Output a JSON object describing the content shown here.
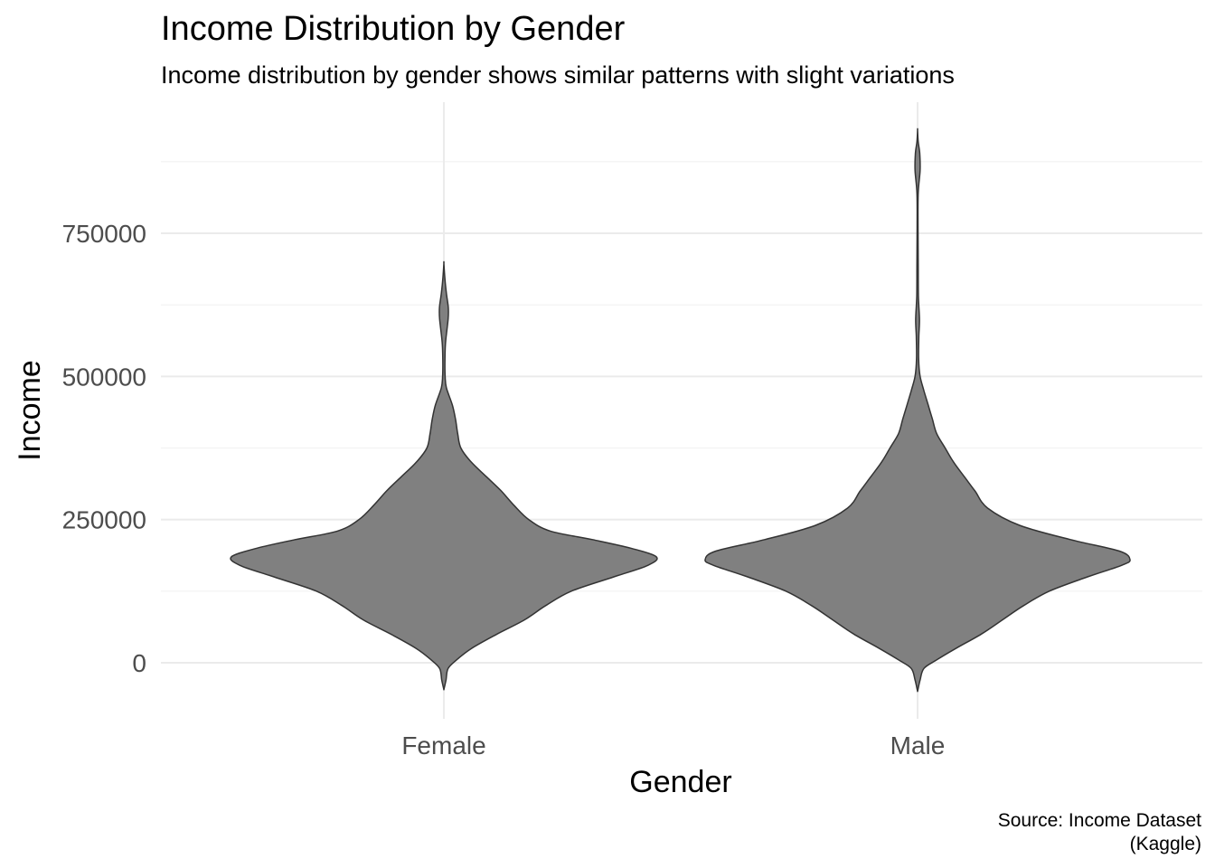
{
  "chart_data": {
    "type": "violin",
    "title": "Income Distribution by Gender",
    "subtitle": "Income distribution by gender shows similar patterns with slight variations",
    "xlabel": "Gender",
    "ylabel": "Income",
    "caption": [
      "Source: Income Dataset",
      "(Kaggle)"
    ],
    "categories": [
      "Female",
      "Male"
    ],
    "yticks": [
      0,
      250000,
      500000,
      750000
    ],
    "ylim": [
      -90000,
      980000
    ],
    "grid": true,
    "fill_color": "#808080",
    "outline_color": "#333333",
    "grid_color": "#ebebeb",
    "series": [
      {
        "category": "Female",
        "min": -47000,
        "max": 697000,
        "density_profile": [
          [
            -47000,
            0.0
          ],
          [
            -30000,
            0.01
          ],
          [
            -10000,
            0.02
          ],
          [
            5000,
            0.06
          ],
          [
            25000,
            0.13
          ],
          [
            50000,
            0.25
          ],
          [
            75000,
            0.38
          ],
          [
            100000,
            0.48
          ],
          [
            125000,
            0.6
          ],
          [
            150000,
            0.8
          ],
          [
            170000,
            0.96
          ],
          [
            185000,
            1.0
          ],
          [
            200000,
            0.88
          ],
          [
            215000,
            0.7
          ],
          [
            230000,
            0.5
          ],
          [
            250000,
            0.4
          ],
          [
            275000,
            0.33
          ],
          [
            300000,
            0.27
          ],
          [
            325000,
            0.2
          ],
          [
            350000,
            0.13
          ],
          [
            375000,
            0.08
          ],
          [
            400000,
            0.065
          ],
          [
            425000,
            0.055
          ],
          [
            450000,
            0.04
          ],
          [
            480000,
            0.012
          ],
          [
            500000,
            0.006
          ],
          [
            530000,
            0.005
          ],
          [
            560000,
            0.008
          ],
          [
            600000,
            0.02
          ],
          [
            620000,
            0.021
          ],
          [
            645000,
            0.012
          ],
          [
            670000,
            0.005
          ],
          [
            697000,
            0.0
          ]
        ]
      },
      {
        "category": "Male",
        "min": -50000,
        "max": 930000,
        "density_profile": [
          [
            -50000,
            0.0
          ],
          [
            -30000,
            0.012
          ],
          [
            -10000,
            0.03
          ],
          [
            5000,
            0.09
          ],
          [
            25000,
            0.18
          ],
          [
            50000,
            0.3
          ],
          [
            75000,
            0.4
          ],
          [
            100000,
            0.5
          ],
          [
            125000,
            0.62
          ],
          [
            150000,
            0.8
          ],
          [
            170000,
            0.96
          ],
          [
            180000,
            1.0
          ],
          [
            195000,
            0.95
          ],
          [
            215000,
            0.72
          ],
          [
            240000,
            0.48
          ],
          [
            270000,
            0.33
          ],
          [
            300000,
            0.27
          ],
          [
            325000,
            0.22
          ],
          [
            350000,
            0.17
          ],
          [
            375000,
            0.13
          ],
          [
            400000,
            0.09
          ],
          [
            425000,
            0.07
          ],
          [
            450000,
            0.05
          ],
          [
            475000,
            0.03
          ],
          [
            500000,
            0.012
          ],
          [
            530000,
            0.005
          ],
          [
            570000,
            0.006
          ],
          [
            600000,
            0.009
          ],
          [
            640000,
            0.004
          ],
          [
            700000,
            0.003
          ],
          [
            760000,
            0.002
          ],
          [
            820000,
            0.003
          ],
          [
            860000,
            0.012
          ],
          [
            890000,
            0.01
          ],
          [
            910000,
            0.003
          ],
          [
            930000,
            0.0
          ]
        ]
      }
    ]
  }
}
